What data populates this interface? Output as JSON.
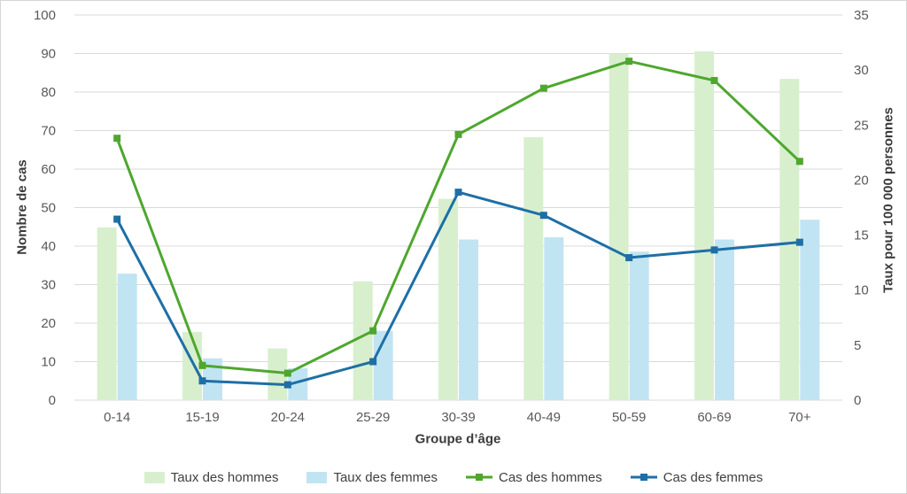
{
  "frame": {
    "background": "#FFFFFF",
    "border_color": "#D6D6D6"
  },
  "chart_data": {
    "type": "combo-bar-line",
    "title": "",
    "categories": [
      "0-14",
      "15-19",
      "20-24",
      "25-29",
      "30-39",
      "40-49",
      "50-59",
      "60-69",
      "70+"
    ],
    "series": [
      {
        "name": "Taux des hommes",
        "type": "bar",
        "axis": "right",
        "color": "#D8EFCE",
        "values": [
          15.7,
          6.2,
          4.7,
          10.8,
          18.3,
          23.9,
          31.5,
          31.7,
          29.2
        ]
      },
      {
        "name": "Taux des femmes",
        "type": "bar",
        "axis": "right",
        "color": "#C1E4F3",
        "values": [
          11.5,
          3.8,
          2.9,
          6.3,
          14.6,
          14.8,
          13.5,
          14.6,
          16.4
        ]
      },
      {
        "name": "Cas des hommes",
        "type": "line",
        "axis": "left",
        "color": "#4EA72E",
        "values": [
          68,
          9,
          7,
          18,
          69,
          81,
          88,
          83,
          62
        ]
      },
      {
        "name": "Cas des femmes",
        "type": "line",
        "axis": "left",
        "color": "#1E6FA6",
        "values": [
          47,
          5,
          4,
          10,
          54,
          48,
          37,
          39,
          41
        ]
      }
    ],
    "xlabel": "Groupe d’âge",
    "ylabel_left": "Nombre de cas",
    "ylabel_right": "Taux pour 100 000 personnes",
    "axis_left": {
      "min": 0,
      "max": 100,
      "step": 10
    },
    "axis_right": {
      "min": 0,
      "max": 35,
      "step": 5
    },
    "grid": true,
    "legend_position": "bottom",
    "grid_color": "#D9D9D9",
    "tick_color": "#595959"
  }
}
